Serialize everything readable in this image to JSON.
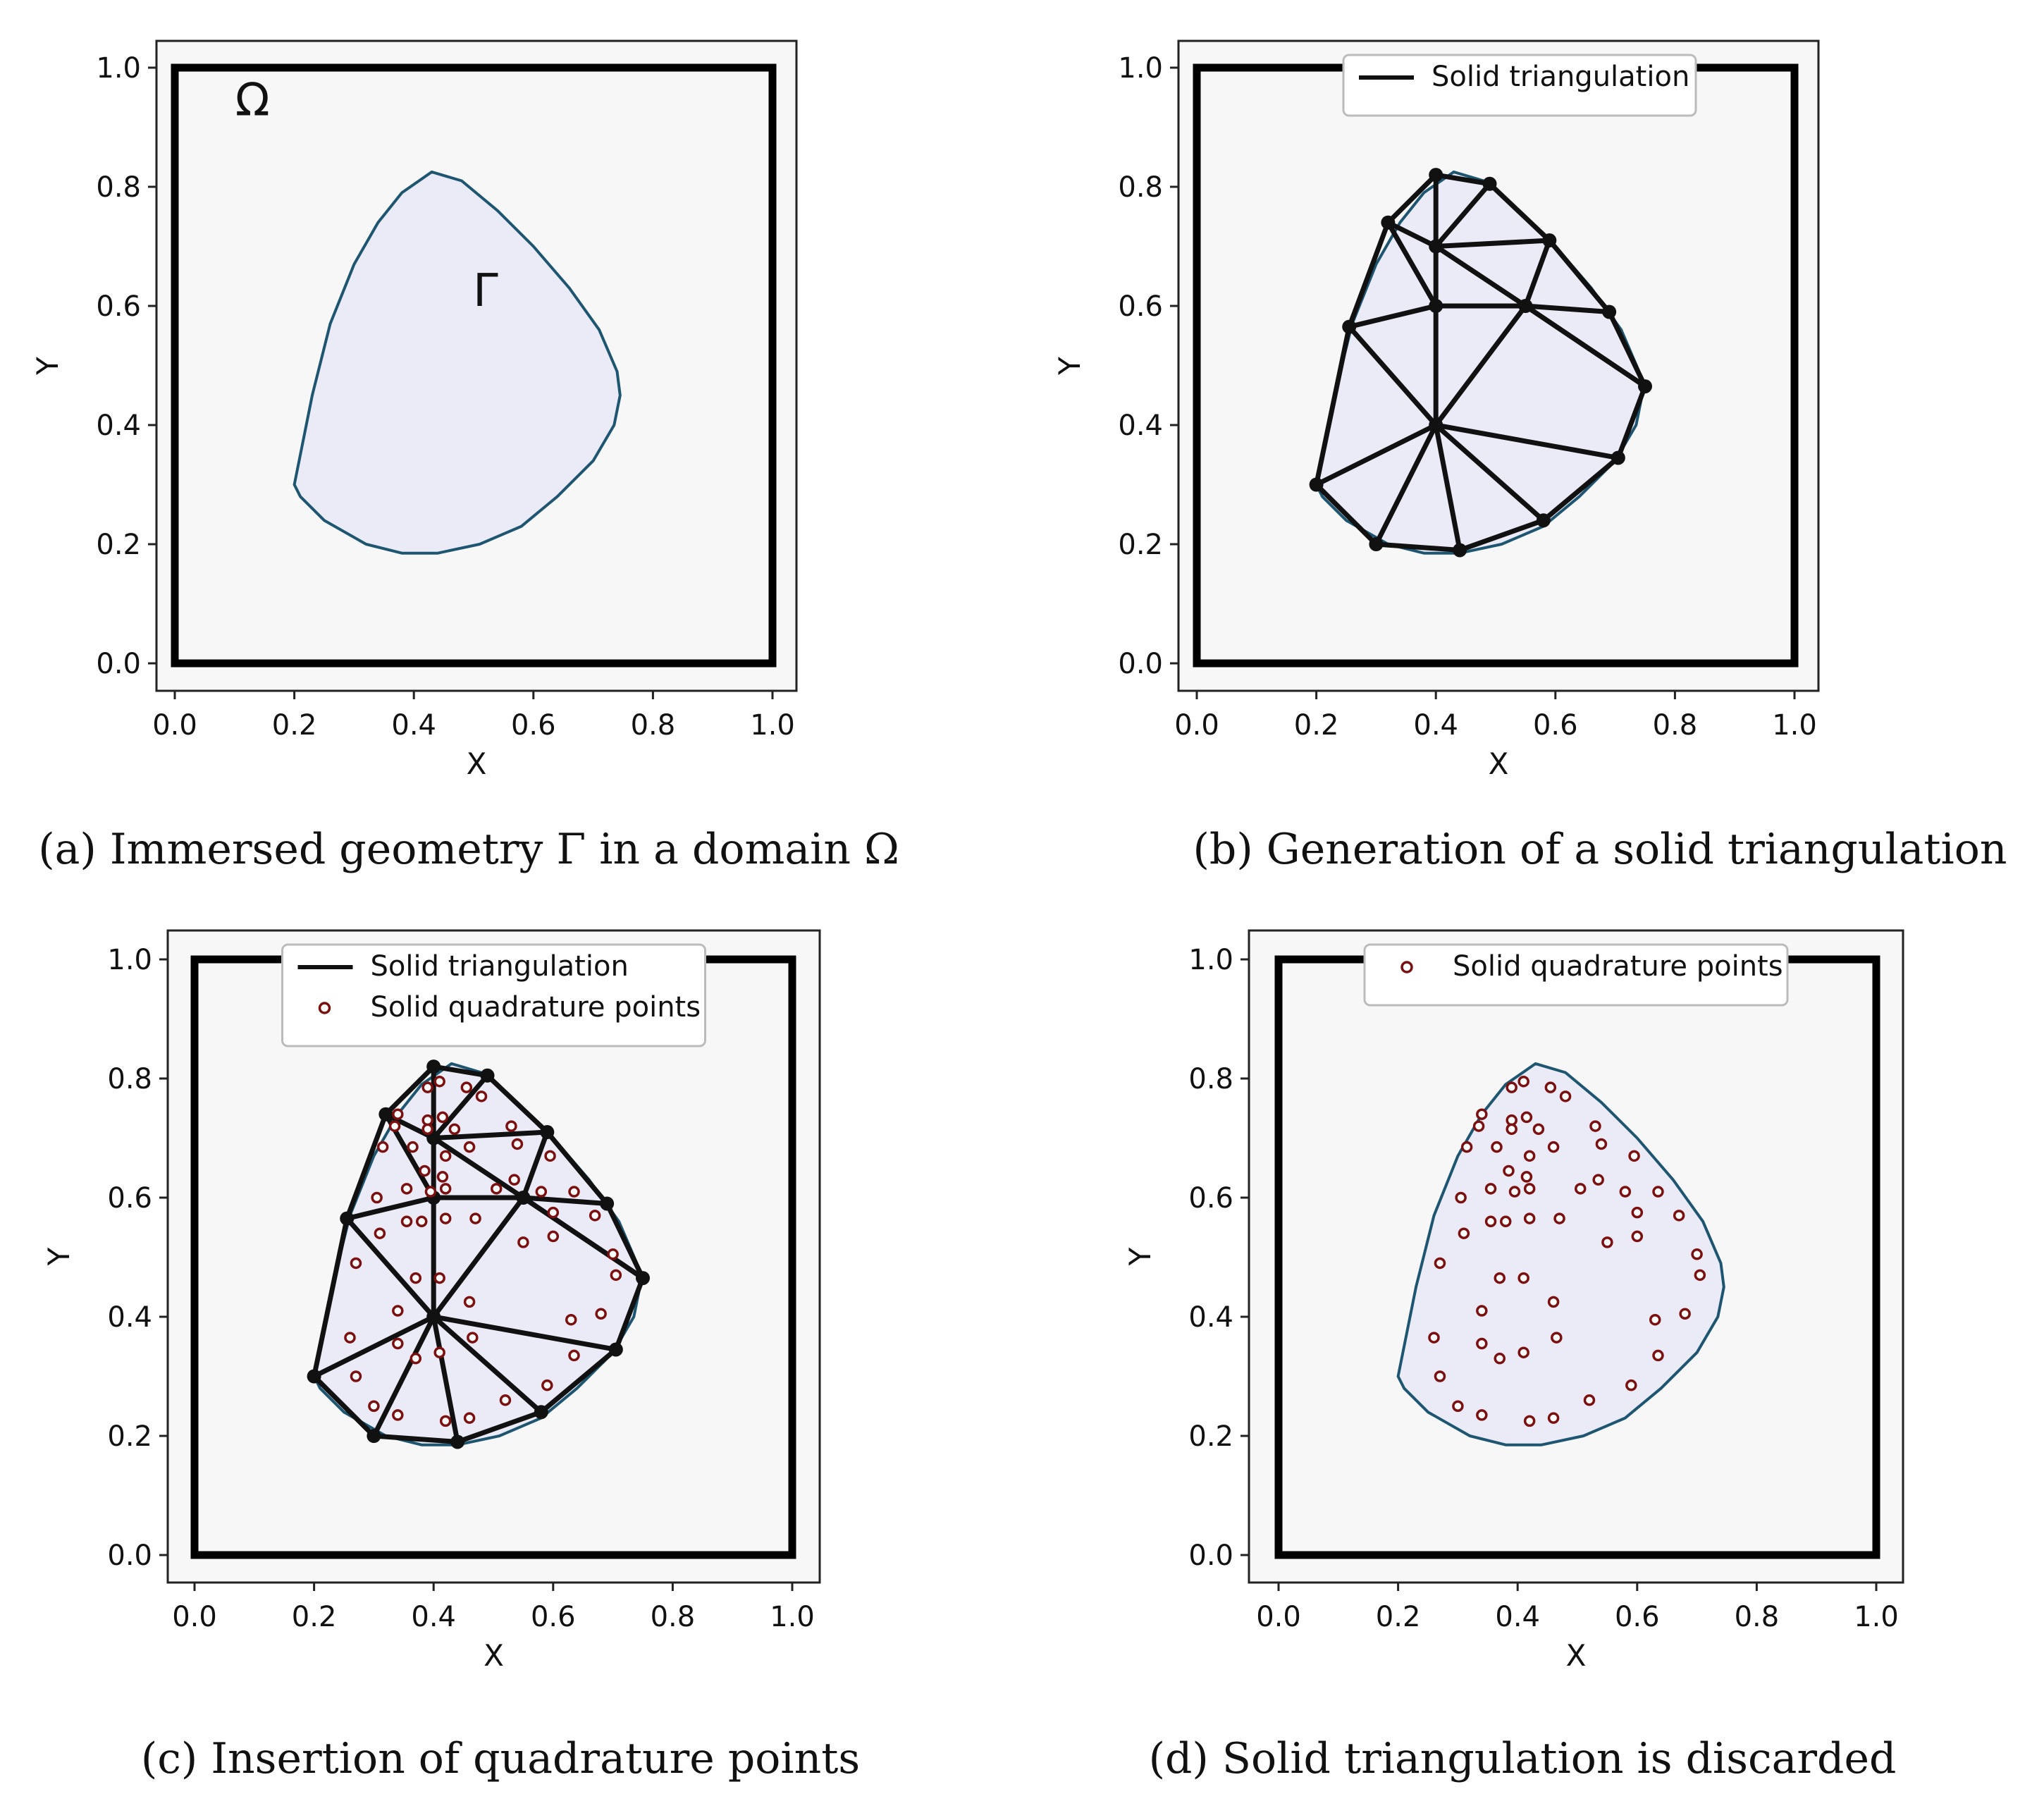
{
  "colors": {
    "fluid_bg": "#f7f7f7",
    "solid_fill": "#ebebf7",
    "boundary": "#1e5570",
    "triangulation": "#111111",
    "quadrature_point": "#7a1010"
  },
  "chart_data": [
    {
      "type": "scatter",
      "panel": "a",
      "caption": "(a) Immersed geometry Γ in a domain Ω",
      "xlabel": "X",
      "ylabel": "Y",
      "xlim": [
        0.0,
        1.0
      ],
      "ylim": [
        0.0,
        1.0
      ],
      "xticks": [
        "0.0",
        "0.2",
        "0.4",
        "0.6",
        "0.8",
        "1.0"
      ],
      "yticks": [
        "0.0",
        "0.2",
        "0.4",
        "0.6",
        "0.8",
        "1.0"
      ],
      "domain_label": "Ω",
      "geometry_label": "Γ",
      "show_boundary": true,
      "show_triangulation": false,
      "show_quadrature": false,
      "legend": []
    },
    {
      "type": "scatter",
      "panel": "b",
      "caption": "(b) Generation of a solid triangulation",
      "xlabel": "X",
      "ylabel": "Y",
      "xlim": [
        0.0,
        1.0
      ],
      "ylim": [
        0.0,
        1.0
      ],
      "xticks": [
        "0.0",
        "0.2",
        "0.4",
        "0.6",
        "0.8",
        "1.0"
      ],
      "yticks": [
        "0.0",
        "0.2",
        "0.4",
        "0.6",
        "0.8",
        "1.0"
      ],
      "show_boundary": true,
      "show_triangulation": true,
      "show_quadrature": false,
      "legend": [
        {
          "kind": "line",
          "label": "Solid triangulation"
        }
      ]
    },
    {
      "type": "scatter",
      "panel": "c",
      "caption": "(c) Insertion of quadrature points",
      "xlabel": "X",
      "ylabel": "Y",
      "xlim": [
        0.0,
        1.0
      ],
      "ylim": [
        0.0,
        1.0
      ],
      "xticks": [
        "0.0",
        "0.2",
        "0.4",
        "0.6",
        "0.8",
        "1.0"
      ],
      "yticks": [
        "0.0",
        "0.2",
        "0.4",
        "0.6",
        "0.8",
        "1.0"
      ],
      "show_boundary": true,
      "show_triangulation": true,
      "show_quadrature": true,
      "legend": [
        {
          "kind": "line",
          "label": "Solid triangulation"
        },
        {
          "kind": "marker",
          "label": "Solid quadrature points"
        }
      ]
    },
    {
      "type": "scatter",
      "panel": "d",
      "caption": "(d) Solid triangulation is discarded",
      "xlabel": "X",
      "ylabel": "Y",
      "xlim": [
        0.0,
        1.0
      ],
      "ylim": [
        0.0,
        1.0
      ],
      "xticks": [
        "0.0",
        "0.2",
        "0.4",
        "0.6",
        "0.8",
        "1.0"
      ],
      "yticks": [
        "0.0",
        "0.2",
        "0.4",
        "0.6",
        "0.8",
        "1.0"
      ],
      "show_boundary": true,
      "show_triangulation": false,
      "show_quadrature": true,
      "legend": [
        {
          "kind": "marker",
          "label": "Solid quadrature points"
        }
      ]
    }
  ],
  "mesh": {
    "boundary_curve": [
      [
        0.2,
        0.3
      ],
      [
        0.23,
        0.45
      ],
      [
        0.26,
        0.57
      ],
      [
        0.3,
        0.67
      ],
      [
        0.34,
        0.74
      ],
      [
        0.38,
        0.79
      ],
      [
        0.43,
        0.825
      ],
      [
        0.48,
        0.81
      ],
      [
        0.54,
        0.76
      ],
      [
        0.6,
        0.7
      ],
      [
        0.66,
        0.63
      ],
      [
        0.71,
        0.56
      ],
      [
        0.74,
        0.49
      ],
      [
        0.745,
        0.45
      ],
      [
        0.735,
        0.4
      ],
      [
        0.7,
        0.34
      ],
      [
        0.64,
        0.28
      ],
      [
        0.58,
        0.23
      ],
      [
        0.51,
        0.2
      ],
      [
        0.44,
        0.185
      ],
      [
        0.38,
        0.185
      ],
      [
        0.32,
        0.2
      ],
      [
        0.25,
        0.24
      ],
      [
        0.21,
        0.28
      ],
      [
        0.2,
        0.3
      ]
    ],
    "nodes": [
      [
        0.4,
        0.82
      ],
      [
        0.49,
        0.805
      ],
      [
        0.59,
        0.71
      ],
      [
        0.69,
        0.59
      ],
      [
        0.75,
        0.465
      ],
      [
        0.705,
        0.345
      ],
      [
        0.58,
        0.24
      ],
      [
        0.44,
        0.19
      ],
      [
        0.3,
        0.2
      ],
      [
        0.2,
        0.3
      ],
      [
        0.255,
        0.565
      ],
      [
        0.32,
        0.74
      ],
      [
        0.4,
        0.7
      ],
      [
        0.4,
        0.6
      ],
      [
        0.55,
        0.6
      ],
      [
        0.4,
        0.4
      ]
    ],
    "edges": [
      [
        0,
        1
      ],
      [
        1,
        2
      ],
      [
        2,
        3
      ],
      [
        3,
        4
      ],
      [
        4,
        5
      ],
      [
        5,
        6
      ],
      [
        6,
        7
      ],
      [
        7,
        8
      ],
      [
        8,
        9
      ],
      [
        9,
        10
      ],
      [
        10,
        11
      ],
      [
        11,
        0
      ],
      [
        0,
        12
      ],
      [
        11,
        12
      ],
      [
        12,
        1
      ],
      [
        12,
        2
      ],
      [
        12,
        13
      ],
      [
        11,
        13
      ],
      [
        10,
        13
      ],
      [
        13,
        14
      ],
      [
        12,
        14
      ],
      [
        2,
        14
      ],
      [
        14,
        3
      ],
      [
        14,
        4
      ],
      [
        13,
        15
      ],
      [
        10,
        15
      ],
      [
        9,
        15
      ],
      [
        8,
        15
      ],
      [
        7,
        15
      ],
      [
        6,
        15
      ],
      [
        5,
        15
      ],
      [
        14,
        15
      ],
      [
        4,
        14
      ]
    ],
    "quadrature_points": [
      [
        0.41,
        0.795
      ],
      [
        0.39,
        0.785
      ],
      [
        0.455,
        0.785
      ],
      [
        0.48,
        0.77
      ],
      [
        0.34,
        0.74
      ],
      [
        0.39,
        0.73
      ],
      [
        0.415,
        0.735
      ],
      [
        0.335,
        0.72
      ],
      [
        0.39,
        0.715
      ],
      [
        0.435,
        0.715
      ],
      [
        0.53,
        0.72
      ],
      [
        0.315,
        0.685
      ],
      [
        0.365,
        0.685
      ],
      [
        0.42,
        0.67
      ],
      [
        0.46,
        0.685
      ],
      [
        0.54,
        0.69
      ],
      [
        0.385,
        0.645
      ],
      [
        0.415,
        0.635
      ],
      [
        0.595,
        0.67
      ],
      [
        0.305,
        0.6
      ],
      [
        0.355,
        0.615
      ],
      [
        0.395,
        0.61
      ],
      [
        0.42,
        0.615
      ],
      [
        0.505,
        0.615
      ],
      [
        0.535,
        0.63
      ],
      [
        0.58,
        0.61
      ],
      [
        0.635,
        0.61
      ],
      [
        0.355,
        0.56
      ],
      [
        0.38,
        0.56
      ],
      [
        0.42,
        0.565
      ],
      [
        0.47,
        0.565
      ],
      [
        0.6,
        0.575
      ],
      [
        0.67,
        0.57
      ],
      [
        0.31,
        0.54
      ],
      [
        0.6,
        0.535
      ],
      [
        0.55,
        0.525
      ],
      [
        0.27,
        0.49
      ],
      [
        0.7,
        0.505
      ],
      [
        0.37,
        0.465
      ],
      [
        0.41,
        0.465
      ],
      [
        0.705,
        0.47
      ],
      [
        0.34,
        0.41
      ],
      [
        0.46,
        0.425
      ],
      [
        0.63,
        0.395
      ],
      [
        0.68,
        0.405
      ],
      [
        0.26,
        0.365
      ],
      [
        0.34,
        0.355
      ],
      [
        0.465,
        0.365
      ],
      [
        0.37,
        0.33
      ],
      [
        0.41,
        0.34
      ],
      [
        0.635,
        0.335
      ],
      [
        0.27,
        0.3
      ],
      [
        0.59,
        0.285
      ],
      [
        0.3,
        0.25
      ],
      [
        0.52,
        0.26
      ],
      [
        0.34,
        0.235
      ],
      [
        0.42,
        0.225
      ],
      [
        0.46,
        0.23
      ]
    ]
  }
}
